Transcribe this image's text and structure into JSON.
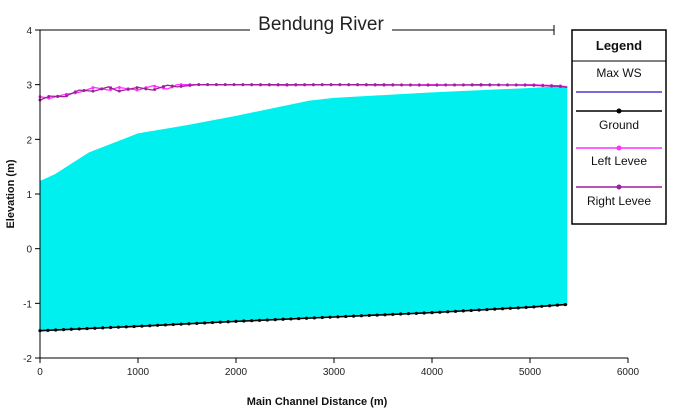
{
  "chart_data": {
    "type": "area",
    "title": "Bendung River",
    "xlabel": "Main Channel Distance (m)",
    "ylabel": "Elevation (m)",
    "xlim": [
      0,
      6000
    ],
    "ylim": [
      -2,
      4
    ],
    "xticks": [
      0,
      1000,
      2000,
      3000,
      4000,
      5000,
      6000
    ],
    "yticks": [
      -2,
      -1,
      0,
      1,
      2,
      3,
      4
    ],
    "grid": false,
    "legend": {
      "title": "Legend",
      "placement": "right",
      "entries": [
        "Max WS",
        "Ground",
        "Left Levee",
        "Right Levee"
      ]
    },
    "series": [
      {
        "name": "Max WS",
        "color": "#00f0f0",
        "line_color": "#4b3cc8",
        "x": [
          0,
          150,
          500,
          1000,
          1500,
          2000,
          2750,
          3000,
          4000,
          5000,
          5380
        ],
        "y": [
          1.23,
          1.35,
          1.75,
          2.1,
          2.25,
          2.42,
          2.7,
          2.75,
          2.85,
          2.93,
          2.97
        ]
      },
      {
        "name": "Ground",
        "color": "#000000",
        "x": [
          0,
          1000,
          2000,
          3000,
          4000,
          5000,
          5380
        ],
        "y": [
          -1.5,
          -1.42,
          -1.33,
          -1.25,
          -1.17,
          -1.07,
          -1.02
        ]
      },
      {
        "name": "Left Levee",
        "color": "#ff30ff",
        "x": [
          0,
          100,
          250,
          400,
          550,
          700,
          800,
          1000,
          1150,
          1300,
          1400,
          1600,
          2000,
          2500,
          3000,
          3500,
          4000,
          4500,
          5000,
          5300,
          5380
        ],
        "y": [
          2.78,
          2.75,
          2.82,
          2.86,
          2.95,
          2.9,
          2.95,
          2.9,
          2.98,
          2.92,
          3.0,
          3.0,
          3.0,
          2.99,
          3.0,
          2.99,
          3.0,
          2.99,
          3.0,
          2.98,
          2.96
        ]
      },
      {
        "name": "Right Levee",
        "color": "#a01ea0",
        "x": [
          0,
          100,
          250,
          400,
          550,
          700,
          800,
          1000,
          1150,
          1300,
          1400,
          1600,
          2000,
          2500,
          3000,
          3500,
          4000,
          4500,
          5000,
          5300,
          5380
        ],
        "y": [
          2.72,
          2.79,
          2.78,
          2.9,
          2.88,
          2.96,
          2.88,
          2.95,
          2.9,
          2.99,
          2.96,
          3.0,
          3.0,
          3.0,
          3.0,
          3.0,
          2.99,
          3.0,
          2.99,
          2.97,
          2.95
        ]
      }
    ]
  }
}
